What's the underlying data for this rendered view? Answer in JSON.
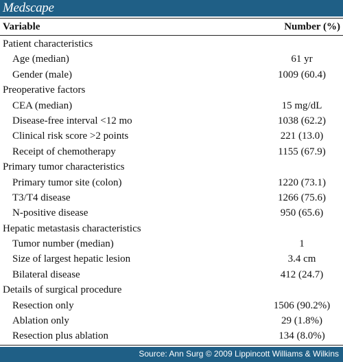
{
  "brand": {
    "logo_text": "Medscape",
    "bar_color": "#1f5f86"
  },
  "table": {
    "columns": [
      "Variable",
      "Number (%)"
    ],
    "rows": [
      {
        "label": "Patient characteristics",
        "value": "",
        "indent": false
      },
      {
        "label": "Age (median)",
        "value": "61 yr",
        "indent": true
      },
      {
        "label": "Gender (male)",
        "value": "1009 (60.4)",
        "indent": true
      },
      {
        "label": "Preoperative factors",
        "value": "",
        "indent": false
      },
      {
        "label": "CEA (median)",
        "value": "15 mg/dL",
        "indent": true
      },
      {
        "label": "Disease-free interval <12 mo",
        "value": "1038 (62.2)",
        "indent": true
      },
      {
        "label": "Clinical risk score >2 points",
        "value": "221 (13.0)",
        "indent": true
      },
      {
        "label": "Receipt of chemotherapy",
        "value": "1155 (67.9)",
        "indent": true
      },
      {
        "label": "Primary tumor characteristics",
        "value": "",
        "indent": false
      },
      {
        "label": "Primary tumor site (colon)",
        "value": "1220 (73.1)",
        "indent": true
      },
      {
        "label": "T3/T4 disease",
        "value": "1266 (75.6)",
        "indent": true
      },
      {
        "label": "N-positive disease",
        "value": "950 (65.6)",
        "indent": true
      },
      {
        "label": "Hepatic metastasis characteristics",
        "value": "",
        "indent": false
      },
      {
        "label": "Tumor number (median)",
        "value": "1",
        "indent": true
      },
      {
        "label": "Size of largest hepatic lesion",
        "value": "3.4 cm",
        "indent": true
      },
      {
        "label": "Bilateral disease",
        "value": "412 (24.7)",
        "indent": true
      },
      {
        "label": "Details of surgical procedure",
        "value": "",
        "indent": false
      },
      {
        "label": "Resection only",
        "value": "1506 (90.2%)",
        "indent": true
      },
      {
        "label": "Ablation only",
        "value": "29 (1.8%)",
        "indent": true
      },
      {
        "label": "Resection plus ablation",
        "value": "134 (8.0%)",
        "indent": true
      }
    ]
  },
  "footer": {
    "source": "Source: Ann Surg © 2009 Lippincott Williams & Wilkins"
  }
}
